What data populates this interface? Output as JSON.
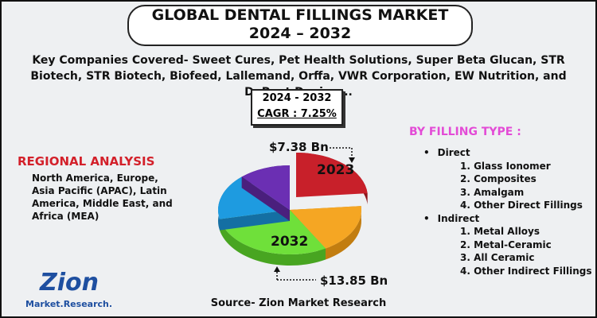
{
  "header": {
    "title_line1": "GLOBAL DENTAL FILLINGS MARKET",
    "title_line2": "2024 – 2032"
  },
  "companies": "Key Companies Covered- Sweet Cures, Pet Health Solutions, Super Beta Glucan, STR Biotech, STR Biotech, Biofeed, Lallemand, Orffa, VWR Corporation, EW Nutrition, and DuPont Danisco..",
  "cagr_box": {
    "period": "2024 - 2032",
    "cagr": "CAGR : 7.25%"
  },
  "pie": {
    "start_value": "$7.38 Bn",
    "start_year": "2023",
    "end_year": "2032",
    "end_value": "$13.85 Bn"
  },
  "regional": {
    "title": "REGIONAL ANALYSIS",
    "text": "North America, Europe, Asia Pacific (APAC), Latin America, Middle East, and Africa (MEA)"
  },
  "filling_type": {
    "title": "BY FILLING TYPE :",
    "groups": [
      {
        "label": "Direct",
        "items": [
          "1. Glass Ionomer",
          "2. Composites",
          "3. Amalgam",
          "4. Other Direct Fillings"
        ]
      },
      {
        "label": "Indirect",
        "items": [
          "1. Metal Alloys",
          "2. Metal-Ceramic",
          "3. All Ceramic",
          "4. Other Indirect Fillings"
        ]
      }
    ]
  },
  "source": "Source- Zion Market Research",
  "logo": {
    "name": "Zion",
    "sub": "Market.Research."
  }
}
